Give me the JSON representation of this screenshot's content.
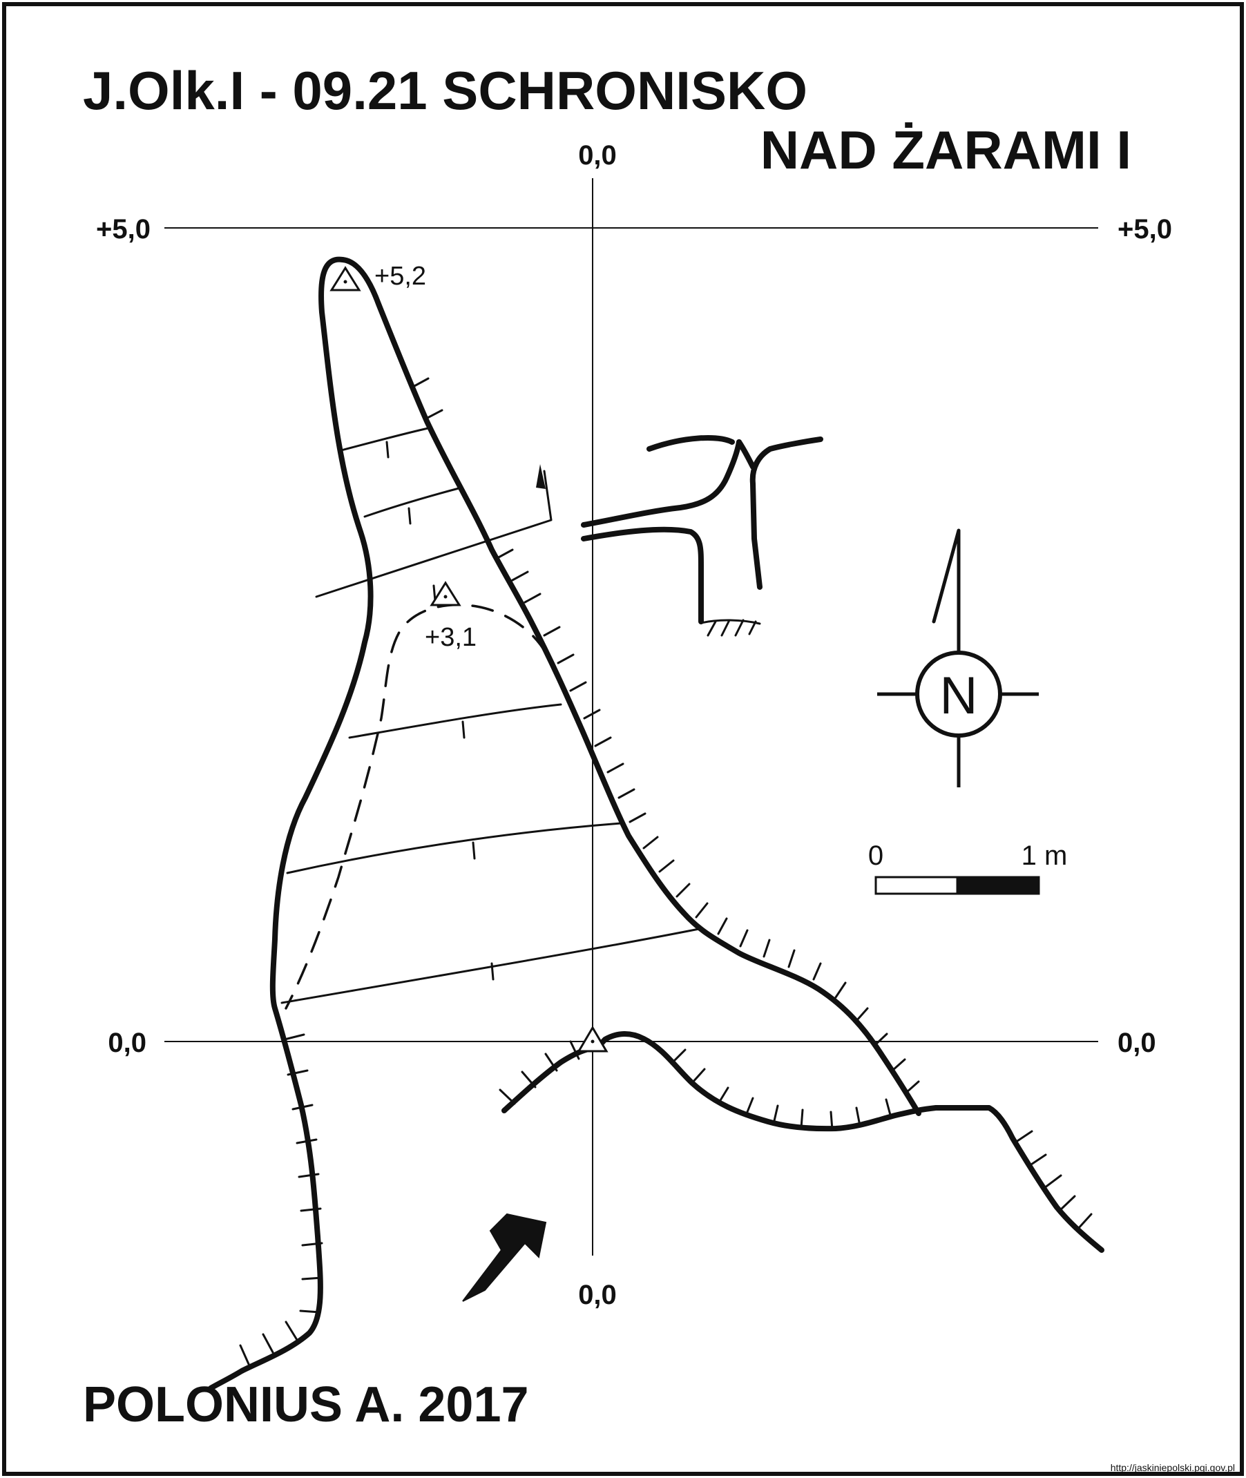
{
  "header": {
    "title_line1": "J.Olk.I - 09.21  SCHRONISKO",
    "title_line2": "NAD ŻARAMI I"
  },
  "grid_labels": {
    "top_center": "0,0",
    "bottom_center": "0,0",
    "left_upper": "+5,0",
    "right_upper": "+5,0",
    "left_lower": "0,0",
    "right_lower": "0,0"
  },
  "elevations": {
    "upper_station": "+5,2",
    "middle_station": "+3,1"
  },
  "compass": {
    "label": "N"
  },
  "scale_bar": {
    "start_label": "0",
    "end_label": "1 m"
  },
  "footer": {
    "author": "POLONIUS A.  2017",
    "source_url": "http://jaskiniepolski.pgi.gov.pl"
  },
  "colors": {
    "ink": "#111111",
    "paper": "#ffffff"
  }
}
